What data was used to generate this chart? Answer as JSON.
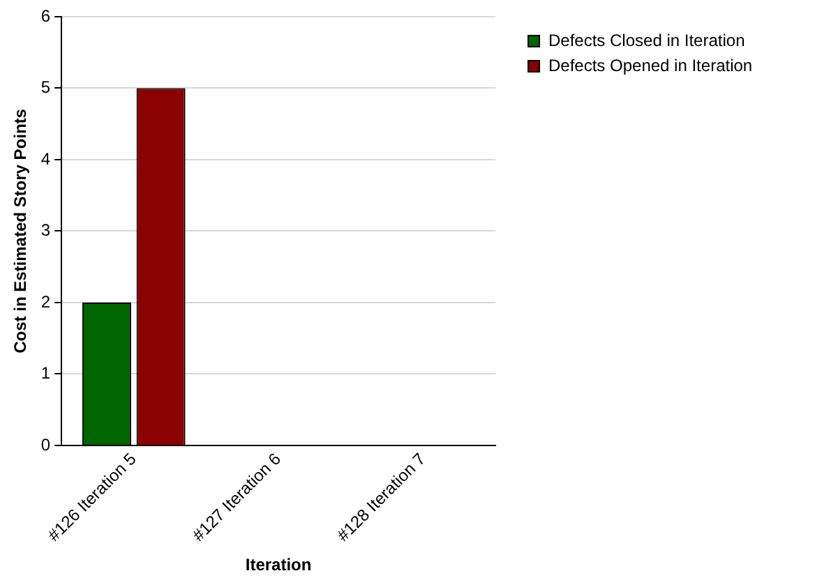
{
  "chart_data": {
    "type": "bar",
    "xlabel": "Iteration",
    "ylabel": "Cost in Estimated Story Points",
    "categories": [
      "#126 Iteration 5",
      "#127 Iteration 6",
      "#128 Iteration 7"
    ],
    "series": [
      {
        "name": "Defects Closed in Iteration",
        "color": "#006600",
        "values": [
          2,
          0,
          0
        ]
      },
      {
        "name": "Defects Opened in Iteration",
        "color": "#8b0000",
        "values": [
          5,
          0,
          0
        ]
      }
    ],
    "ylim": [
      0,
      6
    ],
    "yticks": [
      0,
      1,
      2,
      3,
      4,
      5,
      6
    ],
    "grid": "y",
    "legend": "top right"
  }
}
